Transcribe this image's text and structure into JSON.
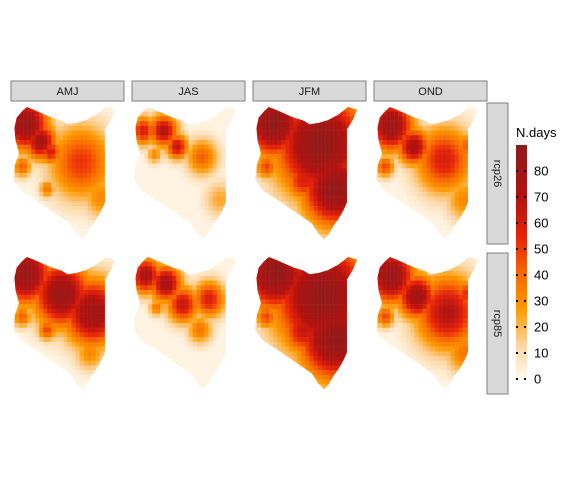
{
  "chart_data": {
    "type": "heatmap",
    "title": "",
    "xlabel": "",
    "ylabel": "",
    "facets": {
      "columns": [
        "AMJ",
        "JAS",
        "JFM",
        "OND"
      ],
      "rows": [
        "rcp26",
        "rcp85"
      ]
    },
    "legend": {
      "title": "N.days",
      "breaks": [
        0,
        10,
        20,
        30,
        40,
        50,
        60,
        70,
        80
      ],
      "placement": "right",
      "range": [
        0,
        90
      ]
    },
    "colors": {
      "low": "#fffaf0",
      "light_orange": "#fdd49e",
      "orange": "#fe9900",
      "dark_orange": "#f76800",
      "red": "#e8240a",
      "dark_red": "#b3120f",
      "max_red": "#8f1a1a",
      "border": "#000000",
      "strip_fill": "#d9d9d9",
      "strip_border": "#7f7f7f"
    },
    "panels": [
      {
        "season": "AMJ",
        "scenario": "rcp26",
        "hotspots": [
          {
            "cx": 0.13,
            "cy": 0.13,
            "r": 0.14,
            "v": 82
          },
          {
            "cx": 0.26,
            "cy": 0.26,
            "r": 0.1,
            "v": 72
          },
          {
            "cx": 0.35,
            "cy": 0.34,
            "r": 0.07,
            "v": 55
          },
          {
            "cx": 0.62,
            "cy": 0.42,
            "r": 0.2,
            "v": 48
          },
          {
            "cx": 0.8,
            "cy": 0.68,
            "r": 0.12,
            "v": 30
          },
          {
            "cx": 0.1,
            "cy": 0.45,
            "r": 0.06,
            "v": 40
          },
          {
            "cx": 0.32,
            "cy": 0.62,
            "r": 0.05,
            "v": 35
          }
        ]
      },
      {
        "season": "JAS",
        "scenario": "rcp26",
        "hotspots": [
          {
            "cx": 0.1,
            "cy": 0.18,
            "r": 0.08,
            "v": 55
          },
          {
            "cx": 0.28,
            "cy": 0.18,
            "r": 0.09,
            "v": 65
          },
          {
            "cx": 0.4,
            "cy": 0.3,
            "r": 0.07,
            "v": 60
          },
          {
            "cx": 0.62,
            "cy": 0.38,
            "r": 0.1,
            "v": 40
          },
          {
            "cx": 0.78,
            "cy": 0.7,
            "r": 0.1,
            "v": 22
          },
          {
            "cx": 0.2,
            "cy": 0.36,
            "r": 0.05,
            "v": 30
          }
        ]
      },
      {
        "season": "JFM",
        "scenario": "rcp26",
        "hotspots": [
          {
            "cx": 0.18,
            "cy": 0.12,
            "r": 0.18,
            "v": 88
          },
          {
            "cx": 0.6,
            "cy": 0.28,
            "r": 0.28,
            "v": 88
          },
          {
            "cx": 0.72,
            "cy": 0.62,
            "r": 0.2,
            "v": 86
          },
          {
            "cx": 0.45,
            "cy": 0.55,
            "r": 0.12,
            "v": 55
          },
          {
            "cx": 0.12,
            "cy": 0.45,
            "r": 0.07,
            "v": 45
          }
        ]
      },
      {
        "season": "OND",
        "scenario": "rcp26",
        "hotspots": [
          {
            "cx": 0.15,
            "cy": 0.14,
            "r": 0.14,
            "v": 80
          },
          {
            "cx": 0.35,
            "cy": 0.3,
            "r": 0.1,
            "v": 70
          },
          {
            "cx": 0.62,
            "cy": 0.4,
            "r": 0.18,
            "v": 55
          },
          {
            "cx": 0.82,
            "cy": 0.3,
            "r": 0.08,
            "v": 40
          },
          {
            "cx": 0.8,
            "cy": 0.7,
            "r": 0.12,
            "v": 30
          },
          {
            "cx": 0.1,
            "cy": 0.45,
            "r": 0.06,
            "v": 45
          }
        ]
      },
      {
        "season": "AMJ",
        "scenario": "rcp85",
        "hotspots": [
          {
            "cx": 0.13,
            "cy": 0.13,
            "r": 0.16,
            "v": 84
          },
          {
            "cx": 0.45,
            "cy": 0.28,
            "r": 0.18,
            "v": 80
          },
          {
            "cx": 0.72,
            "cy": 0.42,
            "r": 0.18,
            "v": 78
          },
          {
            "cx": 0.7,
            "cy": 0.72,
            "r": 0.1,
            "v": 30
          },
          {
            "cx": 0.1,
            "cy": 0.45,
            "r": 0.06,
            "v": 40
          },
          {
            "cx": 0.32,
            "cy": 0.55,
            "r": 0.06,
            "v": 45
          }
        ]
      },
      {
        "season": "JAS",
        "scenario": "rcp85",
        "hotspots": [
          {
            "cx": 0.12,
            "cy": 0.14,
            "r": 0.1,
            "v": 70
          },
          {
            "cx": 0.3,
            "cy": 0.2,
            "r": 0.1,
            "v": 72
          },
          {
            "cx": 0.45,
            "cy": 0.36,
            "r": 0.1,
            "v": 60
          },
          {
            "cx": 0.68,
            "cy": 0.32,
            "r": 0.1,
            "v": 55
          },
          {
            "cx": 0.6,
            "cy": 0.55,
            "r": 0.08,
            "v": 35
          },
          {
            "cx": 0.22,
            "cy": 0.38,
            "r": 0.05,
            "v": 35
          }
        ]
      },
      {
        "season": "JFM",
        "scenario": "rcp85",
        "hotspots": [
          {
            "cx": 0.2,
            "cy": 0.12,
            "r": 0.2,
            "v": 88
          },
          {
            "cx": 0.62,
            "cy": 0.3,
            "r": 0.3,
            "v": 88
          },
          {
            "cx": 0.72,
            "cy": 0.62,
            "r": 0.22,
            "v": 87
          },
          {
            "cx": 0.45,
            "cy": 0.55,
            "r": 0.14,
            "v": 60
          },
          {
            "cx": 0.12,
            "cy": 0.45,
            "r": 0.07,
            "v": 45
          },
          {
            "cx": 0.7,
            "cy": 0.9,
            "r": 0.06,
            "v": 40
          }
        ]
      },
      {
        "season": "OND",
        "scenario": "rcp85",
        "hotspots": [
          {
            "cx": 0.15,
            "cy": 0.14,
            "r": 0.15,
            "v": 82
          },
          {
            "cx": 0.38,
            "cy": 0.3,
            "r": 0.12,
            "v": 76
          },
          {
            "cx": 0.65,
            "cy": 0.42,
            "r": 0.2,
            "v": 65
          },
          {
            "cx": 0.82,
            "cy": 0.28,
            "r": 0.08,
            "v": 50
          },
          {
            "cx": 0.8,
            "cy": 0.72,
            "r": 0.12,
            "v": 35
          },
          {
            "cx": 0.1,
            "cy": 0.45,
            "r": 0.06,
            "v": 45
          }
        ]
      }
    ]
  }
}
